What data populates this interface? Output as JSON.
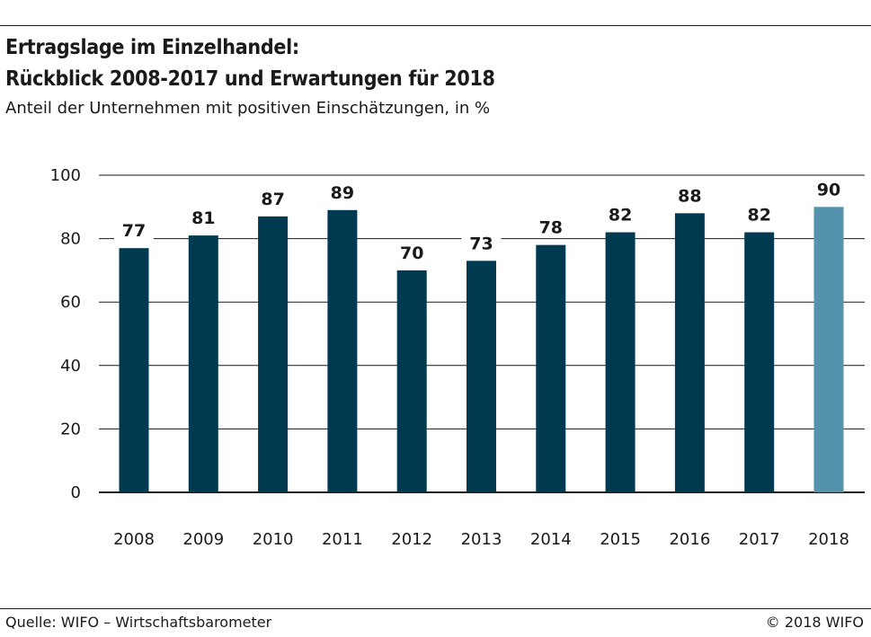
{
  "chart_data": {
    "type": "bar",
    "title": "Ertragslage im Einzelhandel:",
    "title_line2": "Rückblick 2008-2017 und Erwartungen für 2018",
    "subtitle": "Anteil der Unternehmen mit positiven Einschätzungen, in %",
    "categories": [
      "2008",
      "2009",
      "2010",
      "2011",
      "2012",
      "2013",
      "2014",
      "2015",
      "2016",
      "2017",
      "2018"
    ],
    "values": [
      77,
      81,
      87,
      89,
      70,
      73,
      78,
      82,
      88,
      82,
      90
    ],
    "value_labels": [
      "77",
      "81",
      "87",
      "89",
      "70",
      "73",
      "78",
      "82",
      "88",
      "82",
      "90"
    ],
    "yticks": [
      0,
      20,
      40,
      60,
      80,
      100
    ],
    "ylim": [
      0,
      100
    ],
    "xlabel": "",
    "ylabel": "",
    "grid": true,
    "colors": {
      "actual": "#003a50",
      "expected": "#5592ab",
      "grid": "#1a1a1a"
    },
    "highlight_category": "2018"
  },
  "footer": {
    "source": "Quelle: WIFO – Wirtschaftsbarometer",
    "copyright": "© 2018 WIFO"
  }
}
